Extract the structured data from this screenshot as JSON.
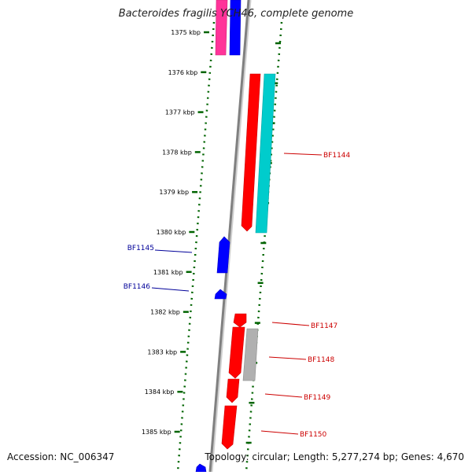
{
  "title": "Bacteroides fragilis YCH46, complete genome",
  "footer": {
    "accession": "Accession: NC_006347",
    "summary": "Topology: circular; Length: 5,277,274 bp; Genes: 4,670"
  },
  "colors": {
    "backbone": "#808080",
    "forward_tick": "#006400",
    "red": "#ff0000",
    "blue": "#0000ff",
    "cyan": "#00cccc",
    "pink": "#ff3399",
    "grey": "#b0b0b0",
    "label_red": "#cc0000",
    "label_blue": "#000099"
  },
  "kbp_labels": [
    "1375 kbp",
    "1376 kbp",
    "1377 kbp",
    "1378 kbp",
    "1379 kbp",
    "1380 kbp",
    "1381 kbp",
    "1382 kbp",
    "1383 kbp",
    "1384 kbp",
    "1385 kbp"
  ],
  "gene_labels": [
    {
      "name": "BF1144",
      "strand": "forward"
    },
    {
      "name": "BF1145",
      "strand": "reverse"
    },
    {
      "name": "BF1146",
      "strand": "reverse"
    },
    {
      "name": "BF1147",
      "strand": "forward"
    },
    {
      "name": "BF1148",
      "strand": "forward"
    },
    {
      "name": "BF1149",
      "strand": "forward"
    },
    {
      "name": "BF1150",
      "strand": "forward"
    }
  ]
}
